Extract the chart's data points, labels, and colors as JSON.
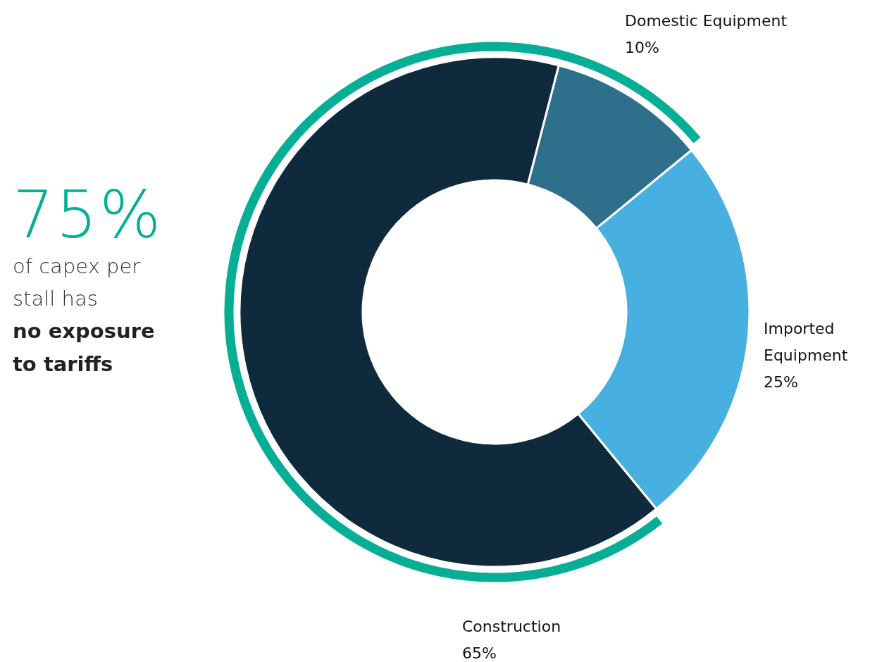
{
  "chart_data": {
    "type": "donut",
    "categories": [
      "Domestic Equipment",
      "Imported Equipment",
      "Construction"
    ],
    "values": [
      10,
      25,
      65
    ],
    "value_labels": [
      "10%",
      "25%",
      "65%"
    ],
    "colors": [
      "#2e6f8c",
      "#48b0e0",
      "#0e2a3c"
    ],
    "annotations": [
      "75%",
      "of capex per stall has",
      "no exposure to tariffs"
    ],
    "legend": false
  }
}
